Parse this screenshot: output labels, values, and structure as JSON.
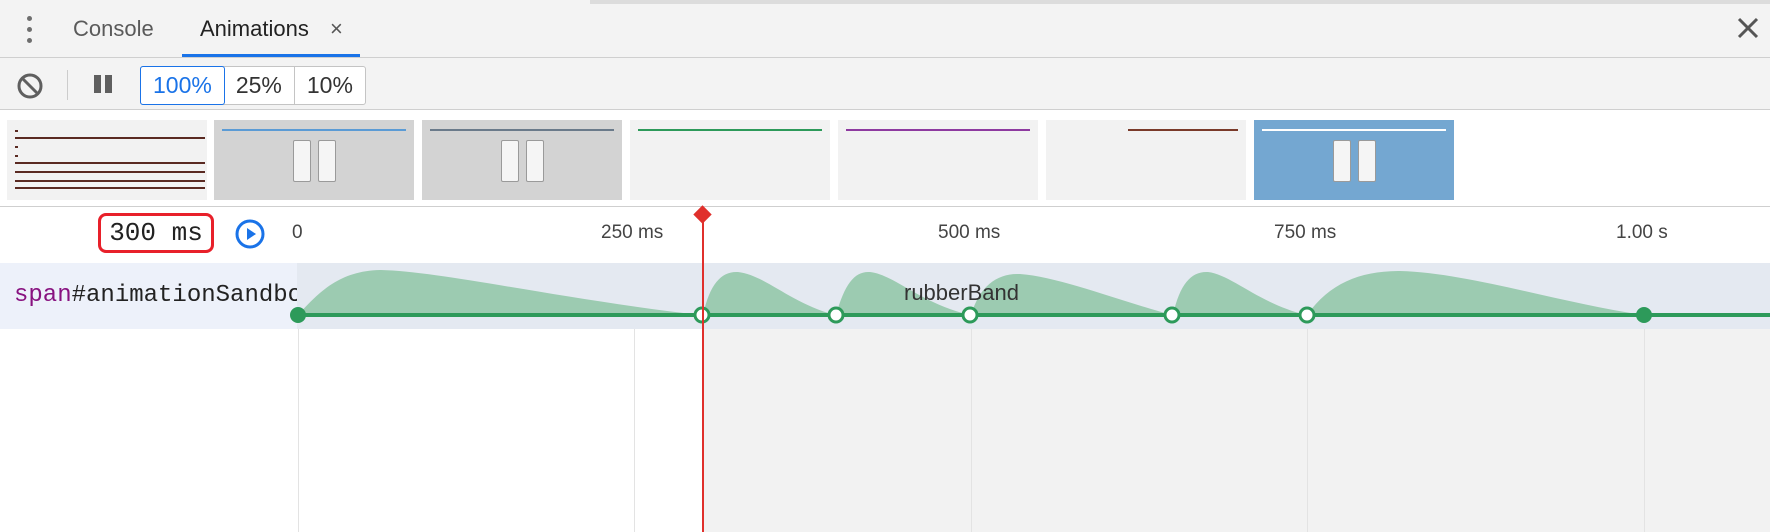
{
  "tabs": [
    {
      "label": "Console"
    },
    {
      "label": "Animations",
      "close": "×"
    }
  ],
  "toolbar": {
    "speeds": [
      "100%",
      "25%",
      "10%"
    ],
    "selected_speed": "100%"
  },
  "timeline": {
    "current_time": "300 ms",
    "ticks": [
      "0",
      "250 ms",
      "500 ms",
      "750 ms",
      "1.00 s"
    ],
    "row": {
      "selector_tag": "span",
      "selector_id": "#animationSandbox",
      "animation_name": "rubberBand"
    }
  },
  "colors": {
    "accent": "#1a73e8",
    "animation_green": "#2d9a5a",
    "animation_fill": "#9ccbb1",
    "playhead": "#e0302c",
    "highlight_box": "#e8202a",
    "thumb_selected": "#74a7d1"
  },
  "icons": {
    "menu": "kebab-menu-icon",
    "clear": "block-icon",
    "pause": "pause-icon",
    "replay": "play-circle-icon",
    "close": "close-icon"
  }
}
